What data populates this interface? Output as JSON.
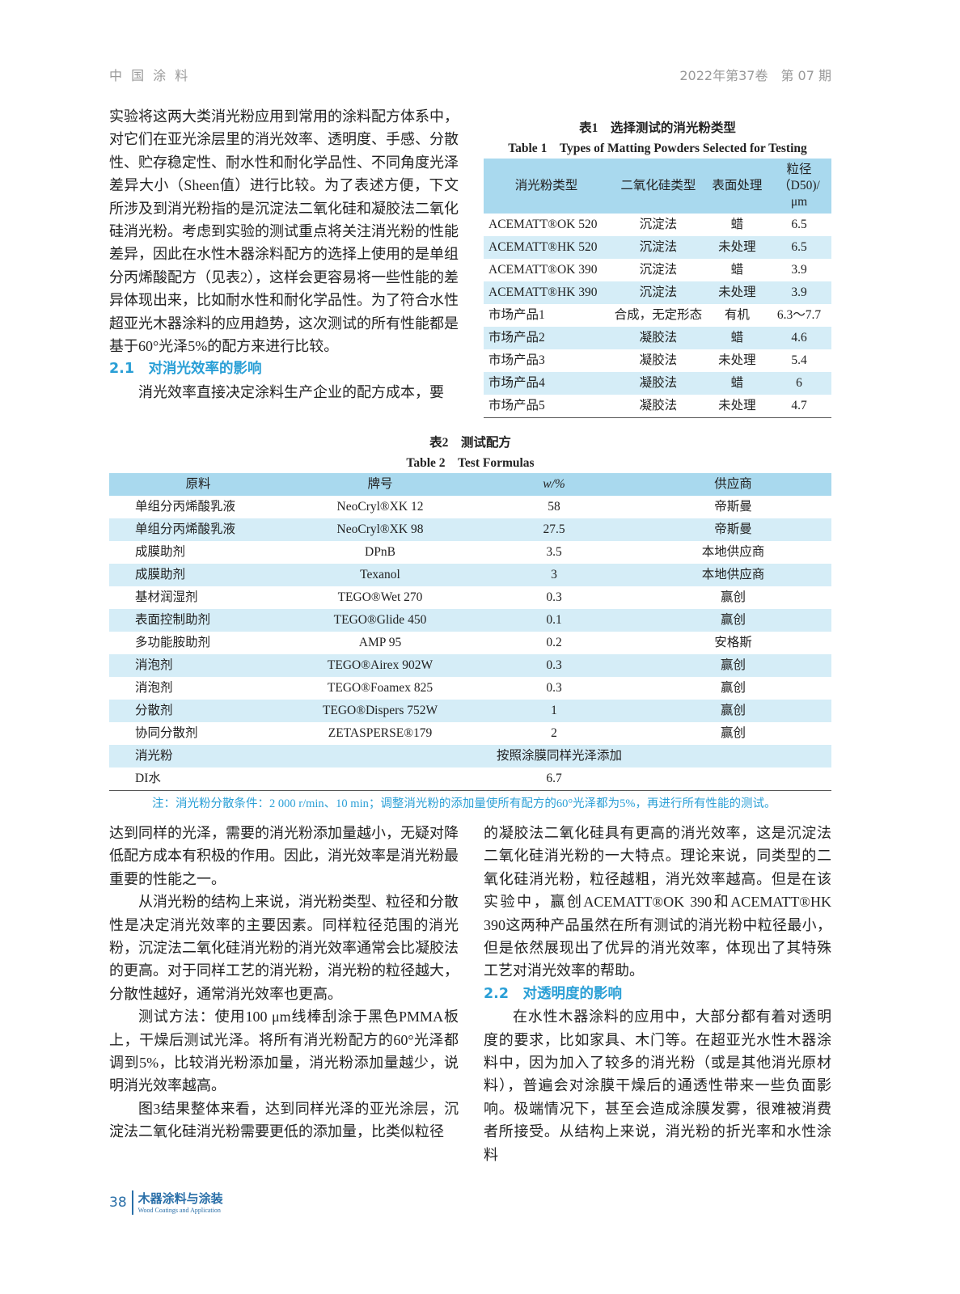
{
  "header": {
    "journal": "中 国 涂 料",
    "issue": "2022年第37卷　第 07 期"
  },
  "left_top": {
    "p1": "实验将这两大类消光粉应用到常用的涂料配方体系中，对它们在亚光涂层里的消光效率、透明度、手感、分散性、贮存稳定性、耐水性和耐化学品性、不同角度光泽差异大小（Sheen值）进行比较。为了表述方便，下文所涉及到消光粉指的是沉淀法二氧化硅和凝胶法二氧化硅消光粉。考虑到实验的测试重点将关注消光粉的性能差异，因此在水性木器涂料配方的选择上使用的是单组分丙烯酸配方（见表2），这样会更容易将一些性能的差异体现出来，比如耐水性和耐化学品性。为了符合水性超亚光木器涂料的应用趋势，这次测试的所有性能都是基于60°光泽5%的配方来进行比较。",
    "sec21": "2.1　对消光效率的影响",
    "p2": "消光效率直接决定涂料生产企业的配方成本，要"
  },
  "table1": {
    "title_cn": "表1　选择测试的消光粉类型",
    "title_en": "Table 1　Types of Matting Powders Selected for Testing",
    "headers": [
      "消光粉类型",
      "二氧化硅类型",
      "表面处理",
      "粒径（D50)/μm"
    ],
    "rows": [
      [
        "ACEMATT®OK 520",
        "沉淀法",
        "蜡",
        "6.5"
      ],
      [
        "ACEMATT®HK 520",
        "沉淀法",
        "未处理",
        "6.5"
      ],
      [
        "ACEMATT®OK 390",
        "沉淀法",
        "蜡",
        "3.9"
      ],
      [
        "ACEMATT®HK 390",
        "沉淀法",
        "未处理",
        "3.9"
      ],
      [
        "市场产品1",
        "合成，无定形态",
        "有机",
        "6.3～7.7"
      ],
      [
        "市场产品2",
        "凝胶法",
        "蜡",
        "4.6"
      ],
      [
        "市场产品3",
        "凝胶法",
        "未处理",
        "5.4"
      ],
      [
        "市场产品4",
        "凝胶法",
        "蜡",
        "6"
      ],
      [
        "市场产品5",
        "凝胶法",
        "未处理",
        "4.7"
      ]
    ]
  },
  "table2": {
    "title_cn": "表2　测试配方",
    "title_en": "Table 2　Test Formulas",
    "headers": [
      "原料",
      "牌号",
      "w/%",
      "供应商"
    ],
    "rows": [
      [
        "单组分丙烯酸乳液",
        "NeoCryl®XK 12",
        "58",
        "帝斯曼"
      ],
      [
        "单组分丙烯酸乳液",
        "NeoCryl®XK 98",
        "27.5",
        "帝斯曼"
      ],
      [
        "成膜助剂",
        "DPnB",
        "3.5",
        "本地供应商"
      ],
      [
        "成膜助剂",
        "Texanol",
        "3",
        "本地供应商"
      ],
      [
        "基材润湿剂",
        "TEGO®Wet 270",
        "0.3",
        "赢创"
      ],
      [
        "表面控制助剂",
        "TEGO®Glide 450",
        "0.1",
        "赢创"
      ],
      [
        "多功能胺助剂",
        "AMP 95",
        "0.2",
        "安格斯"
      ],
      [
        "消泡剂",
        "TEGO®Airex 902W",
        "0.3",
        "赢创"
      ],
      [
        "消泡剂",
        "TEGO®Foamex 825",
        "0.3",
        "赢创"
      ],
      [
        "分散剂",
        "TEGO®Dispers 752W",
        "1",
        "赢创"
      ],
      [
        "协同分散剂",
        "ZETASPERSE®179",
        "2",
        "赢创"
      ]
    ],
    "matting_row": [
      "消光粉",
      "按照涂膜同样光泽添加"
    ],
    "water_row": [
      "DI水",
      "6.7"
    ],
    "note": "注：消光粉分散条件：2 000 r/min、10 min；调整消光粉的添加量使所有配方的60°光泽都为5%，再进行所有性能的测试。"
  },
  "left_bottom": {
    "p1": "达到同样的光泽，需要的消光粉添加量越小，无疑对降低配方成本有积极的作用。因此，消光效率是消光粉最重要的性能之一。",
    "p2": "从消光粉的结构上来说，消光粉类型、粒径和分散性是决定消光效率的主要因素。同样粒径范围的消光粉，沉淀法二氧化硅消光粉的消光效率通常会比凝胶法的更高。对于同样工艺的消光粉，消光粉的粒径越大，分散性越好，通常消光效率也更高。",
    "p3": "测试方法：使用100 μm线棒刮涂于黑色PMMA板上，干燥后测试光泽。将所有消光粉配方的60°光泽都调到5%，比较消光粉添加量，消光粉添加量越少，说明消光效率越高。",
    "p4": "图3结果整体来看，达到同样光泽的亚光涂层，沉淀法二氧化硅消光粉需要更低的添加量，比类似粒径"
  },
  "right_bottom": {
    "p1": "的凝胶法二氧化硅具有更高的消光效率，这是沉淀法二氧化硅消光粉的一大特点。理论来说，同类型的二氧化硅消光粉，粒径越粗，消光效率越高。但是在该实验中，赢创ACEMATT®OK 390和ACEMATT®HK 390这两种产品虽然在所有测试的消光粉中粒径最小，但是依然展现出了优异的消光效率，体现出了其特殊工艺对消光效率的帮助。",
    "sec22": "2.2　对透明度的影响",
    "p2": "在水性木器涂料的应用中，大部分都有着对透明度的要求，比如家具、木门等。在超亚光水性木器涂料中，因为加入了较多的消光粉（或是其他消光原材料），普遍会对涂膜干燥后的通透性带来一些负面影响。极端情况下，甚至会造成涂膜发雾，很难被消费者所接受。从结构上来说，消光粉的折光率和水性涂料"
  },
  "footer": {
    "page": "38",
    "journal_cn": "木器涂料与涂装",
    "journal_en": "Wood Coatings and Application"
  }
}
